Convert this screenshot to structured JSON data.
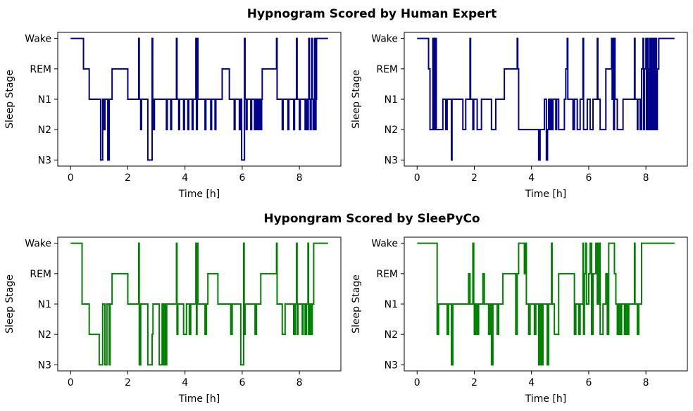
{
  "figure": {
    "section_titles": [
      "Hypnogram Scored by Human Expert",
      "Hypongram Scored by SleePyCo"
    ]
  },
  "chart_data": [
    {
      "type": "line",
      "section": 0,
      "xlabel": "Time [h]",
      "ylabel": "Sleep Stage",
      "xlim": [
        -0.45,
        9.45
      ],
      "ylim": [
        -0.2,
        4.2
      ],
      "xticks": [
        0,
        2,
        4,
        6,
        8
      ],
      "yticks": [
        0,
        1,
        2,
        3,
        4
      ],
      "yticklabels": [
        "N3",
        "N2",
        "N1",
        "REM",
        "Wake"
      ],
      "grid": false,
      "color": "#00008b",
      "steps": [
        [
          0,
          4
        ],
        [
          0.45,
          3
        ],
        [
          0.65,
          2
        ],
        [
          1.05,
          0
        ],
        [
          1.12,
          2
        ],
        [
          1.17,
          1
        ],
        [
          1.2,
          2
        ],
        [
          1.3,
          0
        ],
        [
          1.35,
          2
        ],
        [
          1.45,
          3
        ],
        [
          2.0,
          2
        ],
        [
          2.38,
          4
        ],
        [
          2.4,
          2
        ],
        [
          2.45,
          1
        ],
        [
          2.48,
          2
        ],
        [
          2.7,
          0
        ],
        [
          2.85,
          4
        ],
        [
          2.87,
          2
        ],
        [
          2.9,
          1
        ],
        [
          2.93,
          2
        ],
        [
          3.35,
          1
        ],
        [
          3.38,
          2
        ],
        [
          3.5,
          1
        ],
        [
          3.53,
          2
        ],
        [
          3.7,
          4
        ],
        [
          3.72,
          2
        ],
        [
          3.78,
          1
        ],
        [
          3.81,
          2
        ],
        [
          3.95,
          1
        ],
        [
          3.98,
          2
        ],
        [
          4.1,
          1
        ],
        [
          4.13,
          2
        ],
        [
          4.25,
          1
        ],
        [
          4.28,
          2
        ],
        [
          4.38,
          4
        ],
        [
          4.4,
          1
        ],
        [
          4.43,
          4
        ],
        [
          4.45,
          2
        ],
        [
          4.7,
          1
        ],
        [
          4.73,
          2
        ],
        [
          4.9,
          1
        ],
        [
          4.93,
          2
        ],
        [
          5.05,
          1
        ],
        [
          5.08,
          2
        ],
        [
          5.3,
          3
        ],
        [
          5.55,
          2
        ],
        [
          5.72,
          1
        ],
        [
          5.75,
          2
        ],
        [
          5.9,
          1
        ],
        [
          5.93,
          2
        ],
        [
          5.98,
          0
        ],
        [
          6.08,
          4
        ],
        [
          6.1,
          2
        ],
        [
          6.14,
          1
        ],
        [
          6.17,
          2
        ],
        [
          6.3,
          1
        ],
        [
          6.33,
          2
        ],
        [
          6.43,
          1
        ],
        [
          6.46,
          2
        ],
        [
          6.5,
          1
        ],
        [
          6.53,
          2
        ],
        [
          6.57,
          1
        ],
        [
          6.6,
          2
        ],
        [
          6.65,
          1
        ],
        [
          6.68,
          2
        ],
        [
          6.7,
          3
        ],
        [
          7.2,
          4
        ],
        [
          7.22,
          2
        ],
        [
          7.4,
          1
        ],
        [
          7.43,
          2
        ],
        [
          7.6,
          1
        ],
        [
          7.63,
          2
        ],
        [
          7.8,
          1
        ],
        [
          7.83,
          2
        ],
        [
          7.9,
          4
        ],
        [
          7.92,
          2
        ],
        [
          8.0,
          1
        ],
        [
          8.03,
          2
        ],
        [
          8.2,
          1
        ],
        [
          8.23,
          2
        ],
        [
          8.28,
          1
        ],
        [
          8.31,
          2
        ],
        [
          8.33,
          4
        ],
        [
          8.35,
          2
        ],
        [
          8.38,
          1
        ],
        [
          8.41,
          2
        ],
        [
          8.43,
          4
        ],
        [
          8.45,
          2
        ],
        [
          8.48,
          1
        ],
        [
          8.51,
          2
        ],
        [
          8.53,
          4
        ],
        [
          8.55,
          1
        ],
        [
          8.58,
          2
        ],
        [
          8.6,
          4
        ],
        [
          9.0,
          4
        ]
      ]
    },
    {
      "type": "line",
      "section": 0,
      "xlabel": "Time [h]",
      "ylabel": "Sleep Stage",
      "xlim": [
        -0.45,
        9.45
      ],
      "ylim": [
        -0.2,
        4.2
      ],
      "xticks": [
        0,
        2,
        4,
        6,
        8
      ],
      "yticks": [
        0,
        1,
        2,
        3,
        4
      ],
      "yticklabels": [
        "N3",
        "N2",
        "N1",
        "REM",
        "Wake"
      ],
      "grid": false,
      "color": "#00008b",
      "steps": [
        [
          0,
          4
        ],
        [
          0.4,
          3
        ],
        [
          0.45,
          1
        ],
        [
          0.55,
          4
        ],
        [
          0.57,
          1
        ],
        [
          0.6,
          4
        ],
        [
          0.62,
          1
        ],
        [
          0.65,
          4
        ],
        [
          0.67,
          1
        ],
        [
          0.9,
          2
        ],
        [
          1.0,
          1
        ],
        [
          1.05,
          2
        ],
        [
          1.2,
          0
        ],
        [
          1.22,
          2
        ],
        [
          1.6,
          1
        ],
        [
          1.7,
          2
        ],
        [
          1.85,
          4
        ],
        [
          1.87,
          2
        ],
        [
          1.95,
          1
        ],
        [
          1.98,
          2
        ],
        [
          2.1,
          1
        ],
        [
          2.25,
          2
        ],
        [
          2.6,
          1
        ],
        [
          2.75,
          2
        ],
        [
          3.05,
          3
        ],
        [
          3.5,
          4
        ],
        [
          3.52,
          3
        ],
        [
          3.55,
          1
        ],
        [
          4.25,
          0
        ],
        [
          4.3,
          1
        ],
        [
          4.45,
          2
        ],
        [
          4.52,
          0
        ],
        [
          4.56,
          1
        ],
        [
          4.6,
          2
        ],
        [
          4.65,
          1
        ],
        [
          4.68,
          2
        ],
        [
          4.72,
          1
        ],
        [
          4.75,
          2
        ],
        [
          4.85,
          1
        ],
        [
          4.88,
          2
        ],
        [
          4.95,
          1
        ],
        [
          5.15,
          2
        ],
        [
          5.2,
          3
        ],
        [
          5.25,
          4
        ],
        [
          5.27,
          2
        ],
        [
          5.45,
          1
        ],
        [
          5.5,
          2
        ],
        [
          5.6,
          1
        ],
        [
          5.7,
          2
        ],
        [
          5.8,
          4
        ],
        [
          5.82,
          1
        ],
        [
          5.95,
          2
        ],
        [
          6.05,
          1
        ],
        [
          6.15,
          2
        ],
        [
          6.3,
          4
        ],
        [
          6.32,
          2
        ],
        [
          6.4,
          1
        ],
        [
          6.6,
          3
        ],
        [
          6.8,
          4
        ],
        [
          6.82,
          2
        ],
        [
          6.85,
          4
        ],
        [
          6.87,
          1
        ],
        [
          6.9,
          4
        ],
        [
          6.92,
          2
        ],
        [
          7.0,
          1
        ],
        [
          7.2,
          2
        ],
        [
          7.6,
          4
        ],
        [
          7.62,
          2
        ],
        [
          7.7,
          1
        ],
        [
          7.72,
          2
        ],
        [
          7.8,
          1
        ],
        [
          7.85,
          3
        ],
        [
          7.9,
          4
        ],
        [
          7.92,
          1
        ],
        [
          7.95,
          3
        ],
        [
          8.0,
          4
        ],
        [
          8.02,
          1
        ],
        [
          8.05,
          4
        ],
        [
          8.07,
          3
        ],
        [
          8.1,
          1
        ],
        [
          8.13,
          4
        ],
        [
          8.15,
          1
        ],
        [
          8.18,
          4
        ],
        [
          8.2,
          1
        ],
        [
          8.23,
          3
        ],
        [
          8.25,
          4
        ],
        [
          8.27,
          1
        ],
        [
          8.3,
          4
        ],
        [
          8.32,
          1
        ],
        [
          8.35,
          4
        ],
        [
          8.37,
          1
        ],
        [
          8.4,
          3
        ],
        [
          8.45,
          4
        ],
        [
          9.0,
          4
        ]
      ]
    },
    {
      "type": "line",
      "section": 1,
      "xlabel": "Time [h]",
      "ylabel": "Sleep Stage",
      "xlim": [
        -0.45,
        9.45
      ],
      "ylim": [
        -0.2,
        4.2
      ],
      "xticks": [
        0,
        2,
        4,
        6,
        8
      ],
      "yticks": [
        0,
        1,
        2,
        3,
        4
      ],
      "yticklabels": [
        "N3",
        "N2",
        "N1",
        "REM",
        "Wake"
      ],
      "grid": false,
      "color": "#008000",
      "steps": [
        [
          0,
          4
        ],
        [
          0.4,
          2
        ],
        [
          0.65,
          1
        ],
        [
          1.0,
          0
        ],
        [
          1.12,
          2
        ],
        [
          1.2,
          0
        ],
        [
          1.27,
          2
        ],
        [
          1.35,
          0
        ],
        [
          1.38,
          2
        ],
        [
          1.45,
          3
        ],
        [
          2.0,
          2
        ],
        [
          2.38,
          4
        ],
        [
          2.4,
          0
        ],
        [
          2.45,
          2
        ],
        [
          2.7,
          0
        ],
        [
          2.85,
          1
        ],
        [
          2.88,
          2
        ],
        [
          3.1,
          0
        ],
        [
          3.2,
          2
        ],
        [
          3.25,
          0
        ],
        [
          3.3,
          2
        ],
        [
          3.33,
          0
        ],
        [
          3.36,
          2
        ],
        [
          3.7,
          4
        ],
        [
          3.72,
          1
        ],
        [
          3.75,
          2
        ],
        [
          3.95,
          1
        ],
        [
          4.05,
          2
        ],
        [
          4.15,
          1
        ],
        [
          4.2,
          2
        ],
        [
          4.38,
          4
        ],
        [
          4.4,
          1
        ],
        [
          4.42,
          4
        ],
        [
          4.45,
          2
        ],
        [
          4.7,
          1
        ],
        [
          4.75,
          2
        ],
        [
          4.8,
          3
        ],
        [
          5.15,
          2
        ],
        [
          5.6,
          1
        ],
        [
          5.65,
          2
        ],
        [
          5.95,
          0
        ],
        [
          6.05,
          4
        ],
        [
          6.07,
          1
        ],
        [
          6.1,
          2
        ],
        [
          6.45,
          1
        ],
        [
          6.5,
          2
        ],
        [
          6.65,
          3
        ],
        [
          7.2,
          4
        ],
        [
          7.22,
          2
        ],
        [
          7.4,
          1
        ],
        [
          7.5,
          2
        ],
        [
          7.8,
          1
        ],
        [
          7.85,
          2
        ],
        [
          7.9,
          4
        ],
        [
          7.92,
          1
        ],
        [
          7.95,
          2
        ],
        [
          8.1,
          1
        ],
        [
          8.13,
          2
        ],
        [
          8.2,
          1
        ],
        [
          8.25,
          2
        ],
        [
          8.3,
          4
        ],
        [
          8.32,
          1
        ],
        [
          8.35,
          2
        ],
        [
          8.4,
          1
        ],
        [
          8.45,
          2
        ],
        [
          8.5,
          4
        ],
        [
          9.0,
          4
        ]
      ]
    },
    {
      "type": "line",
      "section": 1,
      "xlabel": "Time [h]",
      "ylabel": "Sleep Stage",
      "xlim": [
        -0.45,
        9.45
      ],
      "ylim": [
        -0.2,
        4.2
      ],
      "xticks": [
        0,
        2,
        4,
        6,
        8
      ],
      "yticks": [
        0,
        1,
        2,
        3,
        4
      ],
      "yticklabels": [
        "N3",
        "N2",
        "N1",
        "REM",
        "Wake"
      ],
      "grid": false,
      "color": "#008000",
      "steps": [
        [
          0,
          4
        ],
        [
          0.7,
          1
        ],
        [
          0.75,
          2
        ],
        [
          1.05,
          1
        ],
        [
          1.1,
          2
        ],
        [
          1.2,
          0
        ],
        [
          1.25,
          2
        ],
        [
          1.8,
          3
        ],
        [
          1.85,
          2
        ],
        [
          1.95,
          4
        ],
        [
          1.98,
          2
        ],
        [
          2.0,
          1
        ],
        [
          2.05,
          2
        ],
        [
          2.1,
          1
        ],
        [
          2.15,
          2
        ],
        [
          2.3,
          3
        ],
        [
          2.35,
          2
        ],
        [
          2.5,
          1
        ],
        [
          2.55,
          2
        ],
        [
          2.6,
          0
        ],
        [
          2.65,
          2
        ],
        [
          2.8,
          1
        ],
        [
          2.85,
          2
        ],
        [
          3.0,
          3
        ],
        [
          3.45,
          1
        ],
        [
          3.5,
          3
        ],
        [
          3.55,
          4
        ],
        [
          3.75,
          3
        ],
        [
          3.78,
          4
        ],
        [
          3.82,
          2
        ],
        [
          3.9,
          1
        ],
        [
          3.95,
          2
        ],
        [
          4.1,
          1
        ],
        [
          4.15,
          2
        ],
        [
          4.25,
          0
        ],
        [
          4.3,
          2
        ],
        [
          4.35,
          0
        ],
        [
          4.4,
          2
        ],
        [
          4.55,
          0
        ],
        [
          4.6,
          2
        ],
        [
          4.7,
          4
        ],
        [
          4.72,
          2
        ],
        [
          4.8,
          1
        ],
        [
          4.95,
          3
        ],
        [
          5.5,
          1
        ],
        [
          5.55,
          2
        ],
        [
          5.65,
          1
        ],
        [
          5.7,
          2
        ],
        [
          5.8,
          4
        ],
        [
          5.82,
          1
        ],
        [
          5.85,
          3
        ],
        [
          5.9,
          4
        ],
        [
          5.92,
          2
        ],
        [
          6.0,
          3
        ],
        [
          6.05,
          4
        ],
        [
          6.1,
          1
        ],
        [
          6.15,
          3
        ],
        [
          6.25,
          4
        ],
        [
          6.3,
          2
        ],
        [
          6.35,
          4
        ],
        [
          6.4,
          1
        ],
        [
          6.5,
          2
        ],
        [
          6.6,
          3
        ],
        [
          6.65,
          1
        ],
        [
          6.7,
          4
        ],
        [
          6.9,
          3
        ],
        [
          6.95,
          2
        ],
        [
          7.0,
          1
        ],
        [
          7.05,
          2
        ],
        [
          7.1,
          1
        ],
        [
          7.15,
          2
        ],
        [
          7.25,
          1
        ],
        [
          7.3,
          2
        ],
        [
          7.35,
          1
        ],
        [
          7.4,
          2
        ],
        [
          7.6,
          4
        ],
        [
          7.62,
          2
        ],
        [
          7.7,
          1
        ],
        [
          7.75,
          2
        ],
        [
          7.85,
          4
        ],
        [
          9.0,
          4
        ]
      ]
    }
  ]
}
